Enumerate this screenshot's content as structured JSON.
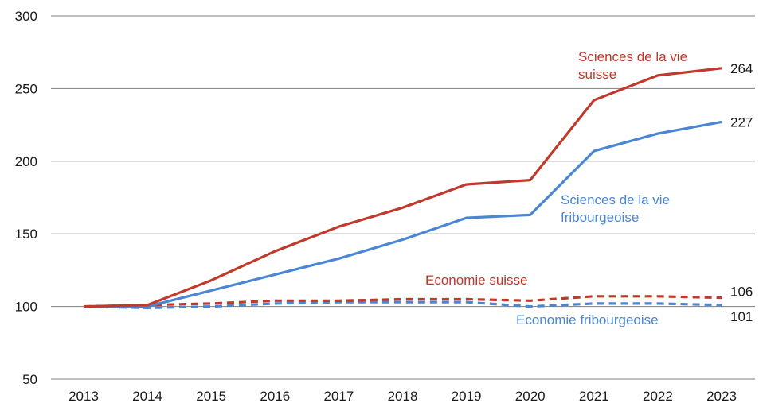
{
  "chart_data": {
    "type": "line",
    "x": [
      "2013",
      "2014",
      "2015",
      "2016",
      "2017",
      "2018",
      "2019",
      "2020",
      "2021",
      "2022",
      "2023"
    ],
    "ylim": [
      50,
      300
    ],
    "yticks": [
      50,
      100,
      150,
      200,
      250,
      300
    ],
    "grid": true,
    "series": [
      {
        "name": "Sciences de la vie suisse",
        "label_lines": [
          "Sciences de la vie",
          "suisse"
        ],
        "color": "#c0392b",
        "dash": false,
        "values": [
          100,
          101,
          118,
          138,
          155,
          168,
          184,
          187,
          242,
          259,
          264
        ],
        "end_label": "264"
      },
      {
        "name": "Sciences de la vie fribourgeoise",
        "label_lines": [
          "Sciences de la vie",
          "fribourgeoise"
        ],
        "color": "#4a86d4",
        "dash": false,
        "values": [
          100,
          100,
          111,
          122,
          133,
          146,
          161,
          163,
          207,
          219,
          227
        ],
        "end_label": "227"
      },
      {
        "name": "Economie suisse",
        "label_lines": [
          "Economie suisse"
        ],
        "color": "#c0392b",
        "dash": true,
        "values": [
          100,
          101,
          102,
          104,
          104,
          105,
          105,
          104,
          107,
          107,
          106
        ],
        "end_label": "106"
      },
      {
        "name": "Economie fribourgeoise",
        "label_lines": [
          "Economie fribourgeoise"
        ],
        "color": "#4a86d4",
        "dash": true,
        "values": [
          100,
          99,
          100,
          102,
          103,
          103,
          103,
          100,
          102,
          102,
          101
        ],
        "end_label": "101"
      }
    ]
  }
}
